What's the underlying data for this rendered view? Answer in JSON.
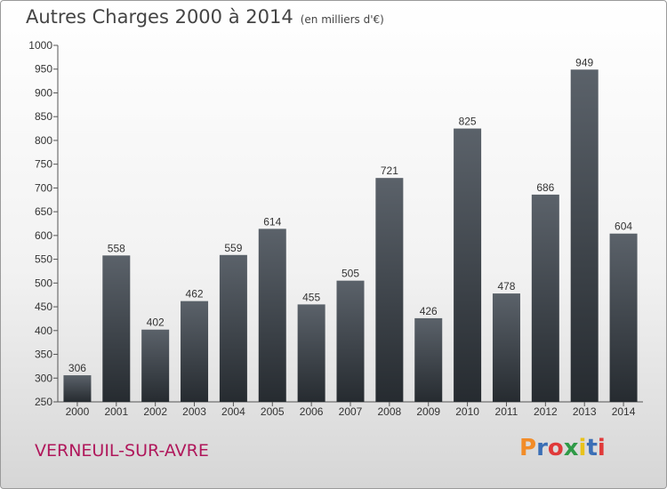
{
  "header": {
    "title": "Autres Charges 2000 à 2014",
    "subtitle": "(en milliers d'€)"
  },
  "footer": {
    "town": "VERNEUIL-SUR-AVRE",
    "logo_text": "Proxiti",
    "logo_colors": [
      "#f28c28",
      "#3b6fb6",
      "#e03a3a",
      "#2f9a47",
      "#e8c21a",
      "#3b6fb6",
      "#e03a3a"
    ]
  },
  "colors": {
    "bar_top": "#5b626a",
    "bar_bottom": "#262b30",
    "town": "#b0175b"
  },
  "chart_data": {
    "type": "bar",
    "title": "Autres Charges 2000 à 2014",
    "subtitle": "(en milliers d'€)",
    "categories": [
      "2000",
      "2001",
      "2002",
      "2003",
      "2004",
      "2005",
      "2006",
      "2007",
      "2008",
      "2009",
      "2010",
      "2011",
      "2012",
      "2013",
      "2014"
    ],
    "values": [
      306,
      558,
      402,
      462,
      559,
      614,
      455,
      505,
      721,
      426,
      825,
      478,
      686,
      949,
      604
    ],
    "ylim": [
      250,
      1000
    ],
    "yticks": [
      250,
      300,
      350,
      400,
      450,
      500,
      550,
      600,
      650,
      700,
      750,
      800,
      850,
      900,
      950,
      1000
    ],
    "grid": false,
    "data_labels": true
  }
}
